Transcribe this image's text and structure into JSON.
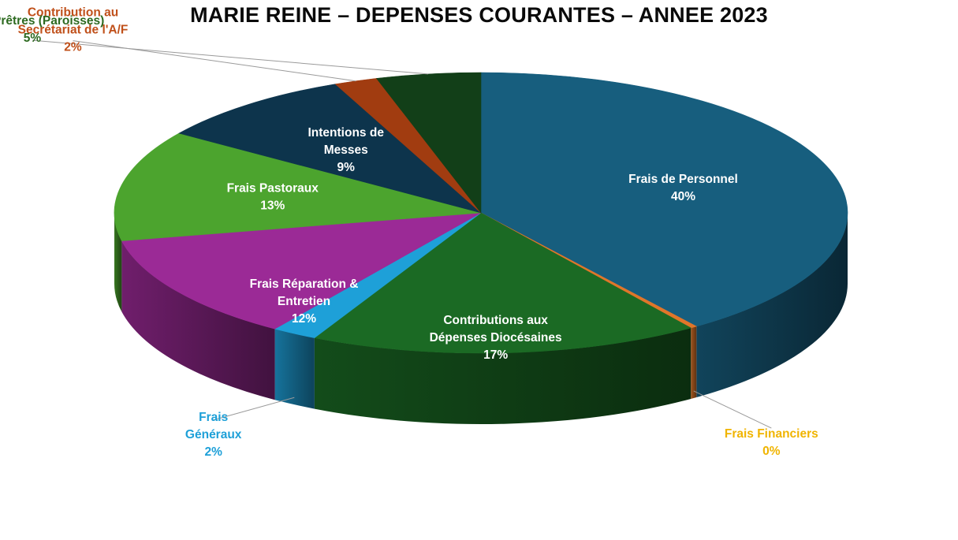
{
  "chart_data": {
    "type": "pie",
    "title": "MARIE REINE – DEPENSES COURANTES – ANNEE 2023",
    "slices": [
      {
        "label": [
          "Frais de Personnel"
        ],
        "pct": "40%",
        "value": 40,
        "color": "#175e7e",
        "label_color": "#ffffff"
      },
      {
        "label": [
          "Frais Financiers"
        ],
        "pct": "0%",
        "value": 0.3,
        "color": "#e0762a",
        "label_color": "#f0b400"
      },
      {
        "label": [
          "Contributions aux",
          "Dépenses Diocésaines"
        ],
        "pct": "17%",
        "value": 17.2,
        "color": "#1b6a24",
        "label_color": "#ffffff"
      },
      {
        "label": [
          "Frais",
          "Généraux"
        ],
        "pct": "2%",
        "value": 2,
        "color": "#1ea0d8",
        "label_color": "#1ea0d8"
      },
      {
        "label": [
          "Frais Réparation &",
          "Entretien"
        ],
        "pct": "12%",
        "value": 12.3,
        "color": "#9b2a96",
        "label_color": "#ffffff"
      },
      {
        "label": [
          "Frais Pastoraux"
        ],
        "pct": "13%",
        "value": 12.8,
        "color": "#4ca42e",
        "label_color": "#ffffff"
      },
      {
        "label": [
          "Intentions de",
          "Messes"
        ],
        "pct": "9%",
        "value": 8.9,
        "color": "#0d344c",
        "label_color": "#ffffff"
      },
      {
        "label": [
          "Contribution au",
          "Secrétariat de l'A/F"
        ],
        "pct": "2%",
        "value": 1.9,
        "color": "#a13c10",
        "label_color": "#c0501a"
      },
      {
        "label": [
          "Frais Prêtres (Paroisses)"
        ],
        "pct": "5%",
        "value": 4.6,
        "color": "#123f18",
        "label_color": "#2d6a20"
      }
    ]
  }
}
